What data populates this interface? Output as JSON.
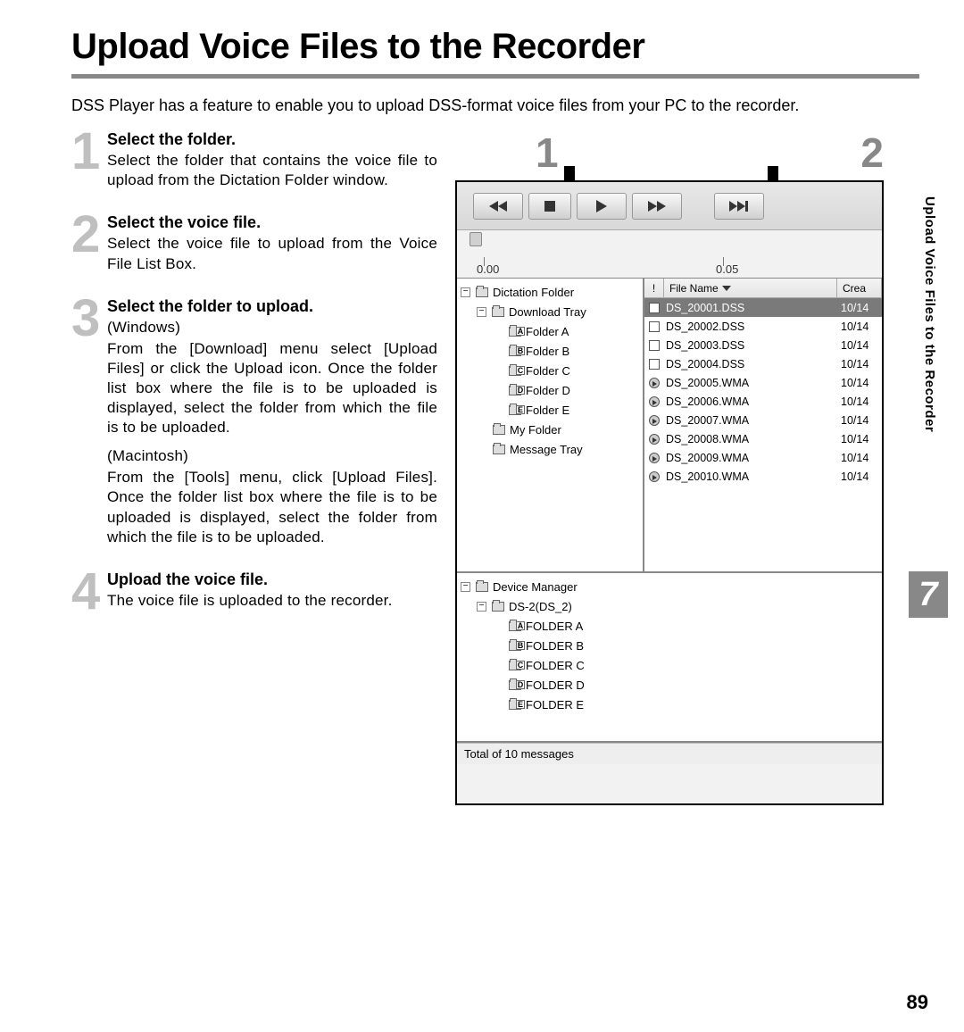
{
  "page": {
    "title": "Upload Voice Files to the Recorder",
    "intro": "DSS Player has a feature to enable you to upload DSS-format voice files from your PC to the recorder.",
    "side_tab": "Upload Voice Files to the Recorder",
    "chapter_number": "7",
    "page_number": "89"
  },
  "callouts": {
    "n1": "1",
    "n2": "2"
  },
  "steps": [
    {
      "num": "1",
      "title": "Select the folder.",
      "paras": [
        "Select the folder that contains the voice file to upload from the Dictation Folder window."
      ]
    },
    {
      "num": "2",
      "title": "Select the voice file.",
      "paras": [
        "Select the voice file to upload from the Voice File List Box."
      ]
    },
    {
      "num": "3",
      "title": "Select the folder to upload.",
      "paras": [
        "(Windows)",
        "From the [Download] menu select [Upload Files] or click the Upload icon. Once the folder list box where the file is to be uploaded is displayed, select the folder from which the file is to be uploaded.",
        "(Macintosh)",
        "From the [Tools] menu, click [Upload Files].  Once the folder list box where the file is to be uploaded is displayed, select the folder from which the file is to be uploaded."
      ]
    },
    {
      "num": "4",
      "title": "Upload the voice file.",
      "paras": [
        "The voice file is uploaded to the recorder."
      ]
    }
  ],
  "app": {
    "ruler": {
      "t0": "0.00",
      "t1": "0.05"
    },
    "tree": {
      "root": "Dictation Folder",
      "download_tray": "Download Tray",
      "folders": [
        "Folder A",
        "Folder B",
        "Folder C",
        "Folder D",
        "Folder E"
      ],
      "my_folder": "My Folder",
      "message_tray": "Message Tray"
    },
    "list": {
      "headers": {
        "bang": "!",
        "name": "File Name",
        "date": "Crea"
      },
      "rows": [
        {
          "icon": "dss",
          "name": "DS_20001.DSS",
          "date": "10/14",
          "selected": true
        },
        {
          "icon": "dss",
          "name": "DS_20002.DSS",
          "date": "10/14"
        },
        {
          "icon": "dss",
          "name": "DS_20003.DSS",
          "date": "10/14"
        },
        {
          "icon": "dss",
          "name": "DS_20004.DSS",
          "date": "10/14"
        },
        {
          "icon": "wma",
          "name": "DS_20005.WMA",
          "date": "10/14"
        },
        {
          "icon": "wma",
          "name": "DS_20006.WMA",
          "date": "10/14"
        },
        {
          "icon": "wma",
          "name": "DS_20007.WMA",
          "date": "10/14"
        },
        {
          "icon": "wma",
          "name": "DS_20008.WMA",
          "date": "10/14"
        },
        {
          "icon": "wma",
          "name": "DS_20009.WMA",
          "date": "10/14"
        },
        {
          "icon": "wma",
          "name": "DS_20010.WMA",
          "date": "10/14"
        }
      ]
    },
    "device": {
      "root": "Device Manager",
      "device_name": "DS-2(DS_2)",
      "folders": [
        "FOLDER A",
        "FOLDER B",
        "FOLDER C",
        "FOLDER D",
        "FOLDER E"
      ]
    },
    "status": "Total of 10 messages"
  },
  "colors": {
    "rule": "#888888",
    "step_num": "#bfbfbf",
    "callout_num": "#888888",
    "chapter_bg": "#888888",
    "selection_bg": "#7a7a7a"
  }
}
